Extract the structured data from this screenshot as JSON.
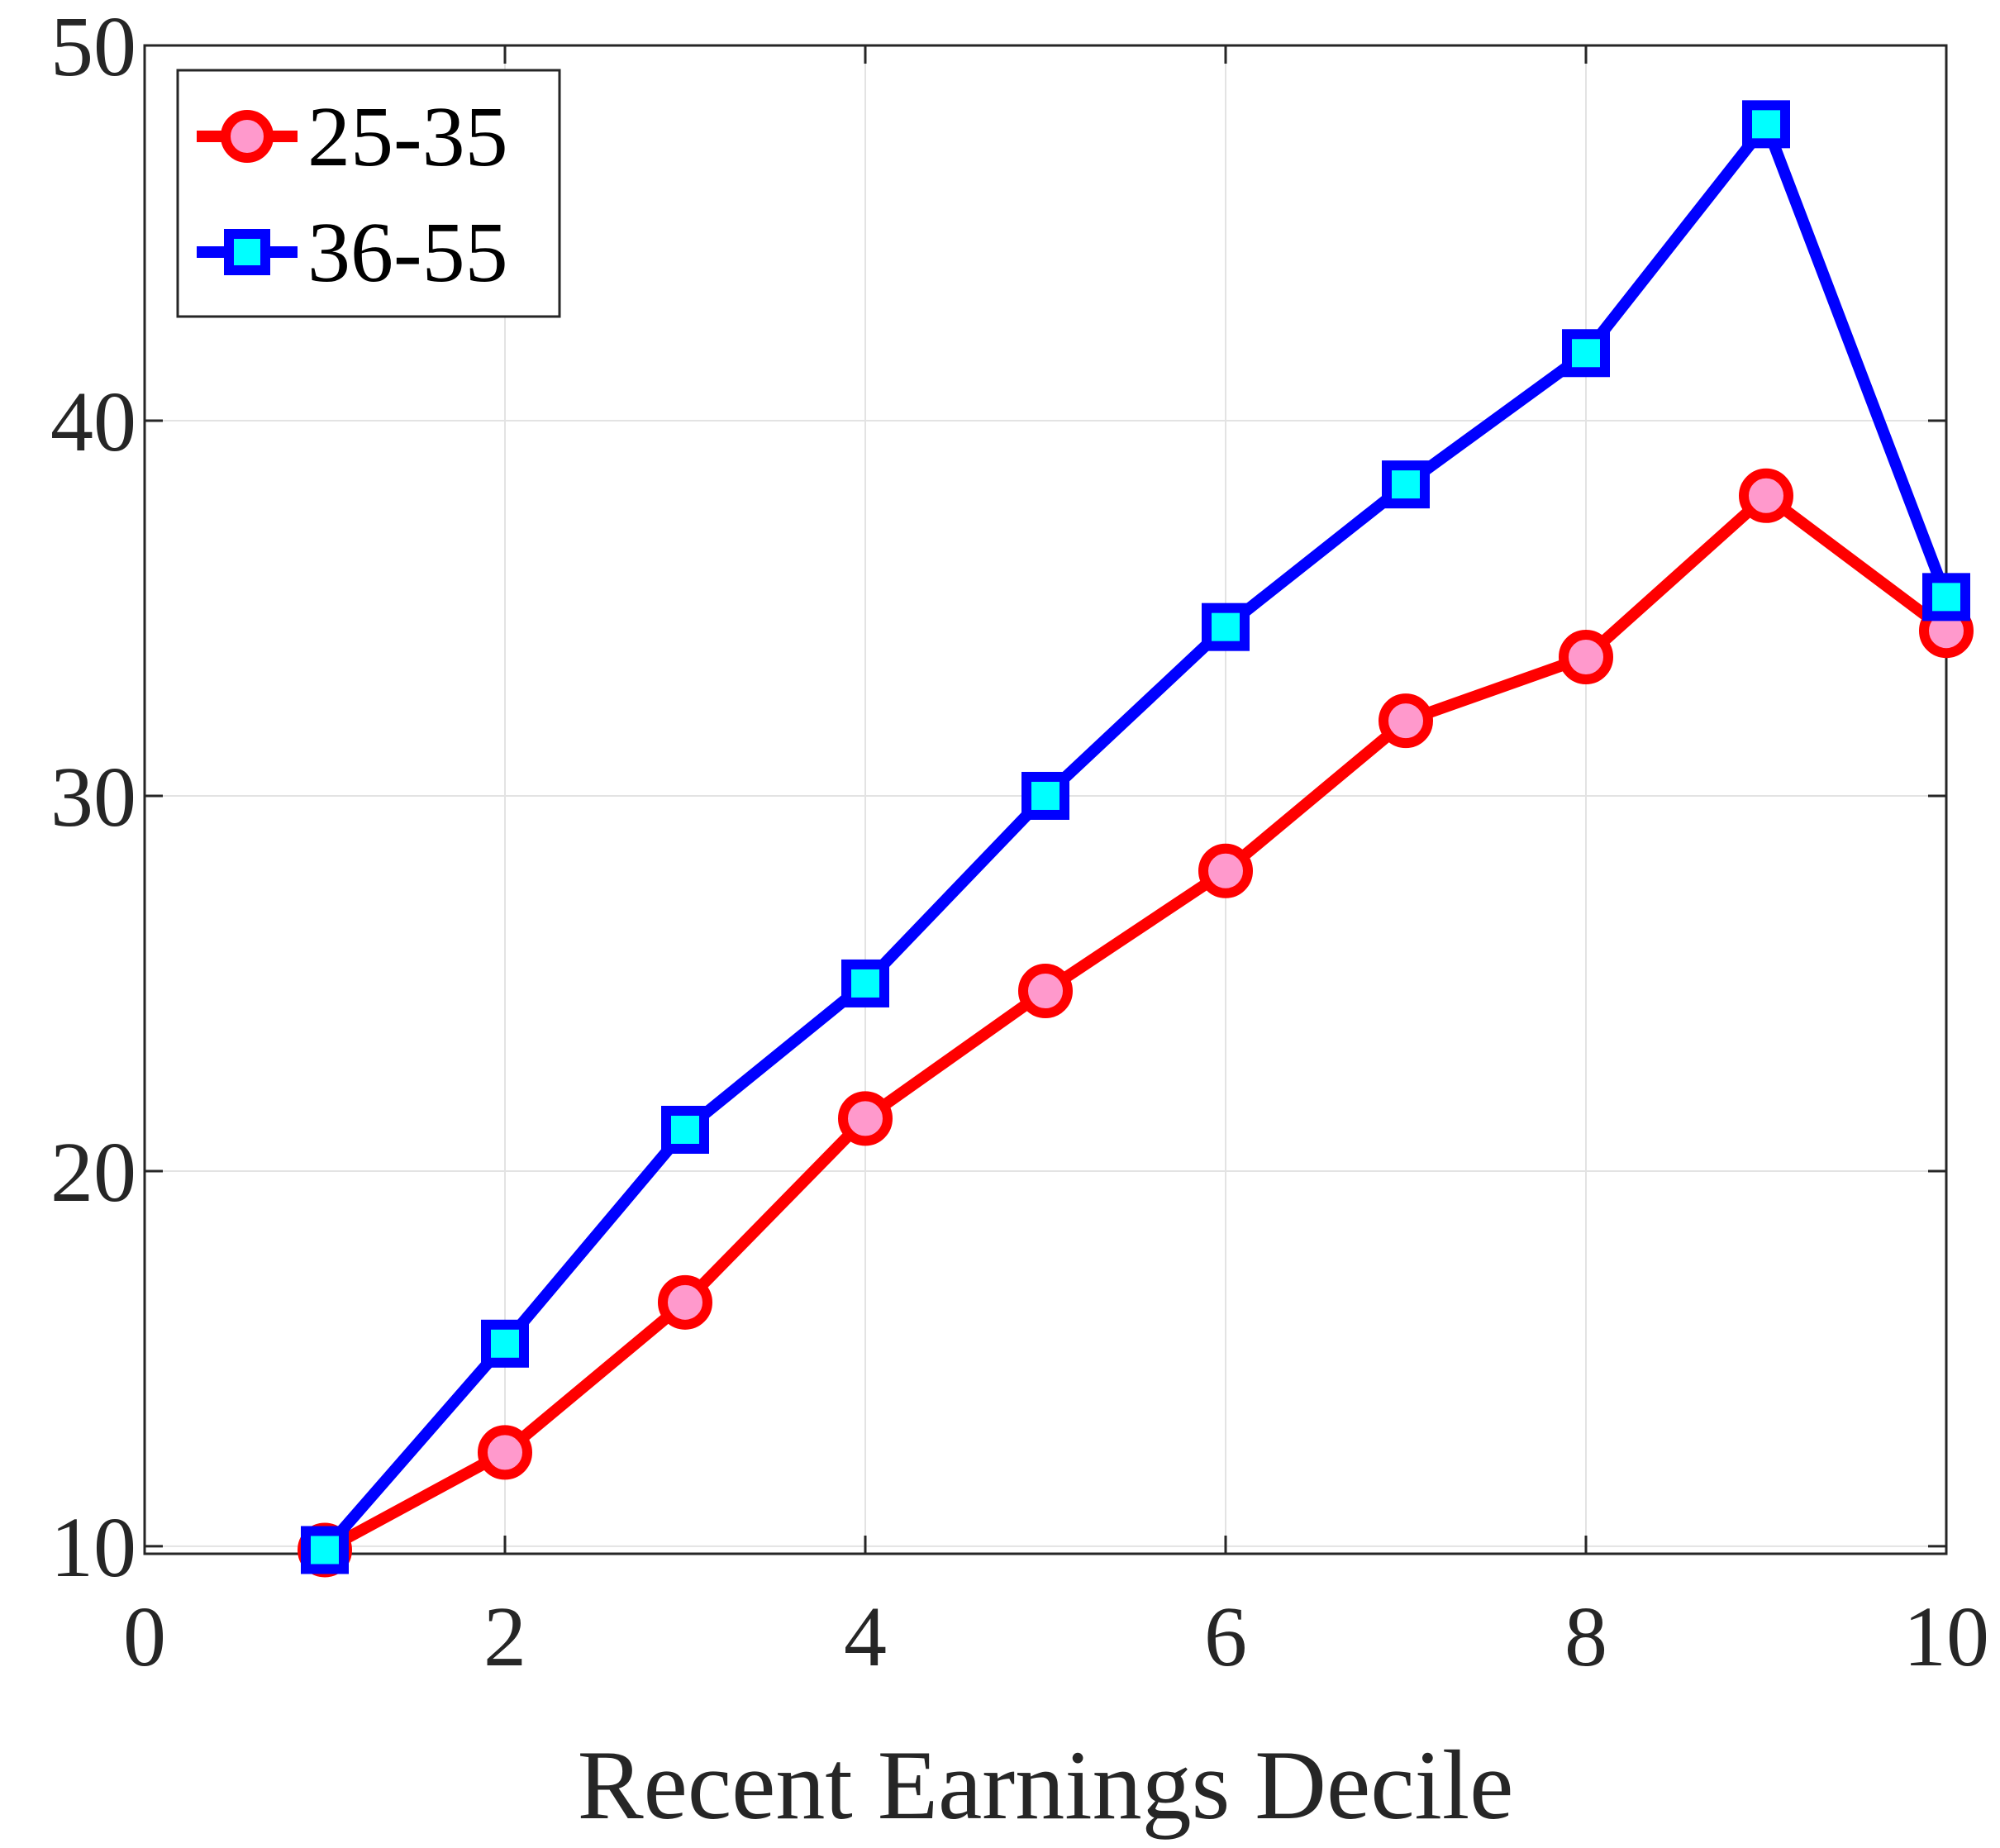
{
  "chart_data": {
    "type": "line",
    "title": "",
    "xlabel": "Recent Earnings Decile",
    "ylabel": "",
    "xlim": [
      0,
      10
    ],
    "ylim": [
      9.8,
      50
    ],
    "xticks": [
      "0",
      "2",
      "4",
      "6",
      "8",
      "10"
    ],
    "yticks": [
      "10",
      "20",
      "30",
      "40",
      "50"
    ],
    "grid": true,
    "legend_position": "top-left",
    "x": [
      1,
      2,
      3,
      4,
      5,
      6,
      7,
      8,
      9,
      10
    ],
    "series": [
      {
        "name": "25-35",
        "values": [
          9.9,
          12.5,
          16.5,
          21.4,
          24.8,
          28.0,
          32.0,
          33.7,
          38.0,
          34.4
        ],
        "line_color": "#ff0000",
        "marker": "circle",
        "marker_fill": "#ff99cc"
      },
      {
        "name": "36-55",
        "values": [
          9.9,
          15.4,
          21.1,
          25.0,
          30.0,
          34.5,
          38.3,
          41.8,
          47.9,
          35.3
        ],
        "line_color": "#0000ff",
        "marker": "square",
        "marker_fill": "#00ffff"
      }
    ]
  }
}
